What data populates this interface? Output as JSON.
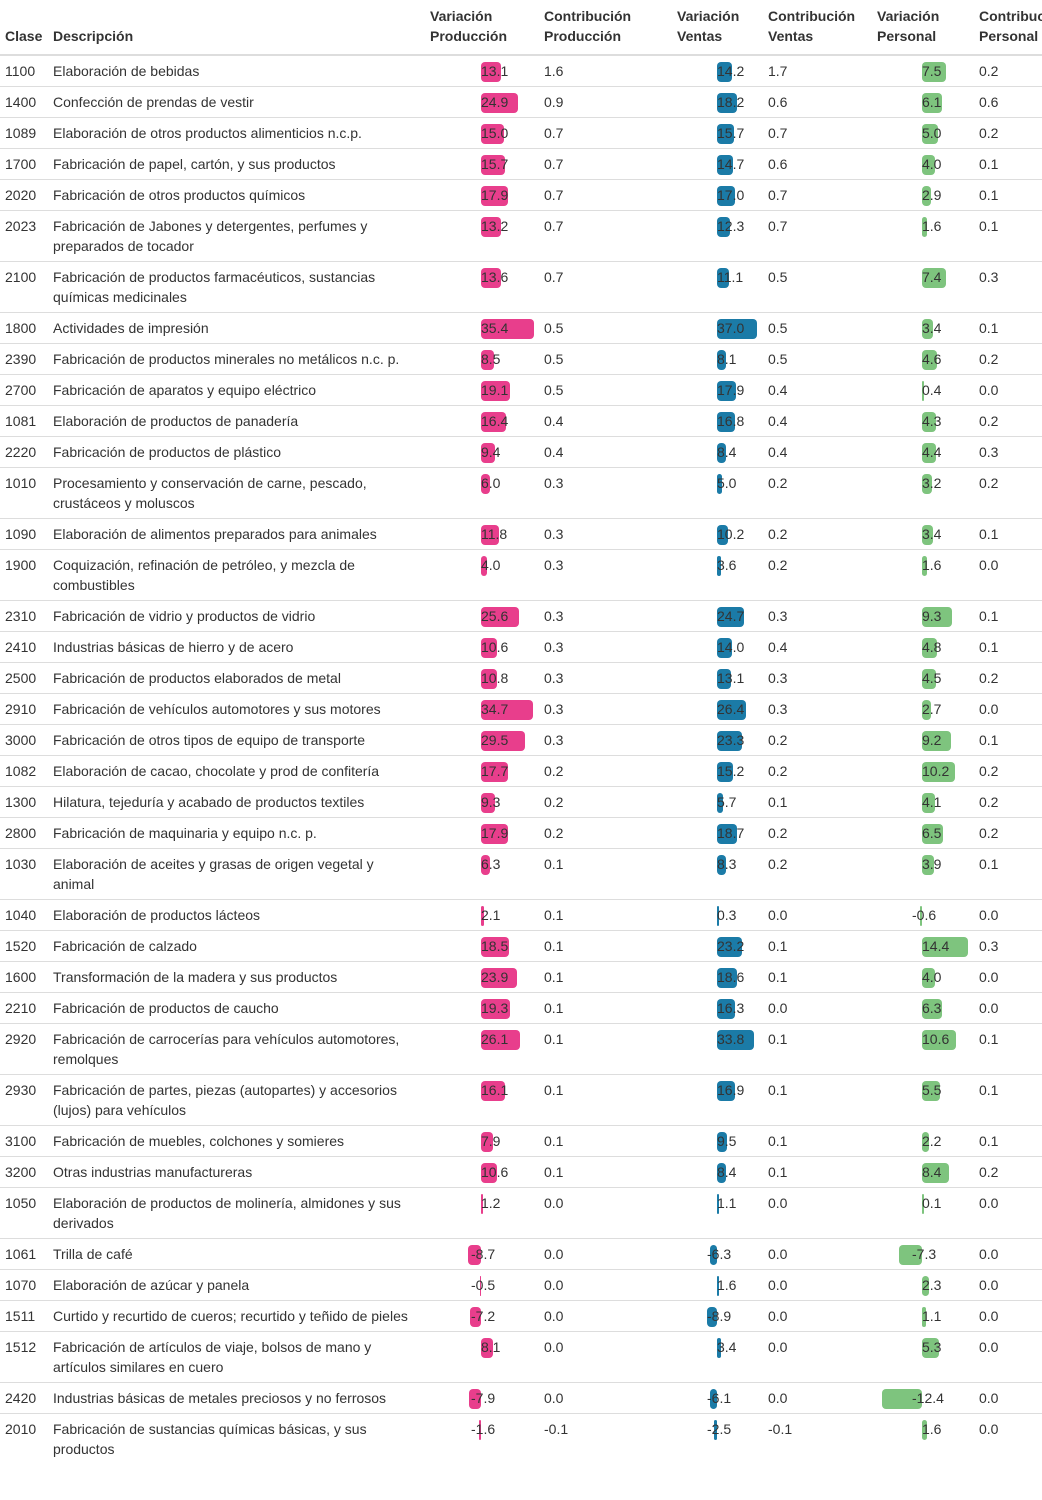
{
  "columns": {
    "clase": "Clase",
    "descripcion": "Descripción",
    "var_prod": [
      "Variación",
      "Producción"
    ],
    "con_prod": [
      "Contribución",
      "Producción"
    ],
    "var_vent": [
      "Variación",
      "Ventas"
    ],
    "con_vent": [
      "Contribución",
      "Ventas"
    ],
    "var_pers": [
      "Variación",
      "Personal"
    ],
    "con_pers": [
      "Contribución",
      "Personal"
    ]
  },
  "colors": {
    "produccion": "#e83e8c",
    "ventas": "#1b7ba7",
    "personal": "#7ec47e",
    "border": "#dddddd"
  },
  "rows": [
    {
      "clase": "1100",
      "desc": "Elaboración de bebidas",
      "vp": "13.1",
      "cp": "1.6",
      "vv": "14.2",
      "cv": "1.7",
      "vpe": "7.5",
      "cpe": "0.2"
    },
    {
      "clase": "1400",
      "desc": "Confección de prendas de vestir",
      "vp": "24.9",
      "cp": "0.9",
      "vv": "18.2",
      "cv": "0.6",
      "vpe": "6.1",
      "cpe": "0.6"
    },
    {
      "clase": "1089",
      "desc": "Elaboración de otros productos alimenticios n.c.p.",
      "vp": "15.0",
      "cp": "0.7",
      "vv": "15.7",
      "cv": "0.7",
      "vpe": "5.0",
      "cpe": "0.2"
    },
    {
      "clase": "1700",
      "desc": "Fabricación de papel, cartón, y sus productos",
      "vp": "15.7",
      "cp": "0.7",
      "vv": "14.7",
      "cv": "0.6",
      "vpe": "4.0",
      "cpe": "0.1"
    },
    {
      "clase": "2020",
      "desc": "Fabricación de otros productos químicos",
      "vp": "17.9",
      "cp": "0.7",
      "vv": "17.0",
      "cv": "0.7",
      "vpe": "2.9",
      "cpe": "0.1"
    },
    {
      "clase": "2023",
      "desc": "Fabricación de Jabones y detergentes, perfumes y preparados de tocador",
      "vp": "13.2",
      "cp": "0.7",
      "vv": "12.3",
      "cv": "0.7",
      "vpe": "1.6",
      "cpe": "0.1"
    },
    {
      "clase": "2100",
      "desc": "Fabricación de productos farmacéuticos, sustancias químicas medicinales",
      "vp": "13.6",
      "cp": "0.7",
      "vv": "11.1",
      "cv": "0.5",
      "vpe": "7.4",
      "cpe": "0.3"
    },
    {
      "clase": "1800",
      "desc": "Actividades de impresión",
      "vp": "35.4",
      "cp": "0.5",
      "vv": "37.0",
      "cv": "0.5",
      "vpe": "3.4",
      "cpe": "0.1"
    },
    {
      "clase": "2390",
      "desc": "Fabricación de productos minerales no metálicos n.c. p.",
      "vp": "8.5",
      "cp": "0.5",
      "vv": "8.1",
      "cv": "0.5",
      "vpe": "4.6",
      "cpe": "0.2"
    },
    {
      "clase": "2700",
      "desc": "Fabricación de aparatos y equipo eléctrico",
      "vp": "19.1",
      "cp": "0.5",
      "vv": "17.9",
      "cv": "0.4",
      "vpe": "0.4",
      "cpe": "0.0"
    },
    {
      "clase": "1081",
      "desc": "Elaboración de productos de panadería",
      "vp": "16.4",
      "cp": "0.4",
      "vv": "16.8",
      "cv": "0.4",
      "vpe": "4.3",
      "cpe": "0.2"
    },
    {
      "clase": "2220",
      "desc": "Fabricación de productos de plástico",
      "vp": "9.4",
      "cp": "0.4",
      "vv": "8.4",
      "cv": "0.4",
      "vpe": "4.4",
      "cpe": "0.3"
    },
    {
      "clase": "1010",
      "desc": "Procesamiento y conservación de carne, pescado, crustáceos y moluscos",
      "vp": "6.0",
      "cp": "0.3",
      "vv": "5.0",
      "cv": "0.2",
      "vpe": "3.2",
      "cpe": "0.2"
    },
    {
      "clase": "1090",
      "desc": "Elaboración de alimentos preparados para animales",
      "vp": "11.8",
      "cp": "0.3",
      "vv": "10.2",
      "cv": "0.2",
      "vpe": "3.4",
      "cpe": "0.1"
    },
    {
      "clase": "1900",
      "desc": "Coquización, refinación de petróleo, y mezcla de combustibles",
      "vp": "4.0",
      "cp": "0.3",
      "vv": "3.6",
      "cv": "0.2",
      "vpe": "1.6",
      "cpe": "0.0"
    },
    {
      "clase": "2310",
      "desc": "Fabricación de vidrio y productos de vidrio",
      "vp": "25.6",
      "cp": "0.3",
      "vv": "24.7",
      "cv": "0.3",
      "vpe": "9.3",
      "cpe": "0.1"
    },
    {
      "clase": "2410",
      "desc": "Industrias básicas de hierro y de acero",
      "vp": "10.6",
      "cp": "0.3",
      "vv": "14.0",
      "cv": "0.4",
      "vpe": "4.8",
      "cpe": "0.1"
    },
    {
      "clase": "2500",
      "desc": "Fabricación de productos elaborados de metal",
      "vp": "10.8",
      "cp": "0.3",
      "vv": "13.1",
      "cv": "0.3",
      "vpe": "4.5",
      "cpe": "0.2"
    },
    {
      "clase": "2910",
      "desc": "Fabricación de vehículos automotores y sus motores",
      "vp": "34.7",
      "cp": "0.3",
      "vv": "26.4",
      "cv": "0.3",
      "vpe": "2.7",
      "cpe": "0.0"
    },
    {
      "clase": "3000",
      "desc": "Fabricación de otros tipos de equipo de transporte",
      "vp": "29.5",
      "cp": "0.3",
      "vv": "23.3",
      "cv": "0.2",
      "vpe": "9.2",
      "cpe": "0.1"
    },
    {
      "clase": "1082",
      "desc": "Elaboración de cacao, chocolate y prod de confitería",
      "vp": "17.7",
      "cp": "0.2",
      "vv": "15.2",
      "cv": "0.2",
      "vpe": "10.2",
      "cpe": "0.2"
    },
    {
      "clase": "1300",
      "desc": "Hilatura, tejeduría y acabado de productos textiles",
      "vp": "9.3",
      "cp": "0.2",
      "vv": "5.7",
      "cv": "0.1",
      "vpe": "4.1",
      "cpe": "0.2"
    },
    {
      "clase": "2800",
      "desc": "Fabricación de maquinaria y equipo n.c. p.",
      "vp": "17.9",
      "cp": "0.2",
      "vv": "18.7",
      "cv": "0.2",
      "vpe": "6.5",
      "cpe": "0.2"
    },
    {
      "clase": "1030",
      "desc": "Elaboración de aceites y grasas de origen vegetal y animal",
      "vp": "6.3",
      "cp": "0.1",
      "vv": "8.3",
      "cv": "0.2",
      "vpe": "3.9",
      "cpe": "0.1"
    },
    {
      "clase": "1040",
      "desc": "Elaboración de productos lácteos",
      "vp": "2.1",
      "cp": "0.1",
      "vv": "0.3",
      "cv": "0.0",
      "vpe": "-0.6",
      "cpe": "0.0"
    },
    {
      "clase": "1520",
      "desc": "Fabricación de calzado",
      "vp": "18.5",
      "cp": "0.1",
      "vv": "23.2",
      "cv": "0.1",
      "vpe": "14.4",
      "cpe": "0.3"
    },
    {
      "clase": "1600",
      "desc": "Transformación de la madera y sus productos",
      "vp": "23.9",
      "cp": "0.1",
      "vv": "18.6",
      "cv": "0.1",
      "vpe": "4.0",
      "cpe": "0.0"
    },
    {
      "clase": "2210",
      "desc": "Fabricación de productos de caucho",
      "vp": "19.3",
      "cp": "0.1",
      "vv": "16.3",
      "cv": "0.0",
      "vpe": "6.3",
      "cpe": "0.0"
    },
    {
      "clase": "2920",
      "desc": "Fabricación de carrocerías para vehículos automotores, remolques",
      "vp": "26.1",
      "cp": "0.1",
      "vv": "33.8",
      "cv": "0.1",
      "vpe": "10.6",
      "cpe": "0.1"
    },
    {
      "clase": "2930",
      "desc": "Fabricación de partes, piezas (autopartes) y accesorios (lujos) para vehículos",
      "vp": "16.1",
      "cp": "0.1",
      "vv": "16.9",
      "cv": "0.1",
      "vpe": "5.5",
      "cpe": "0.1"
    },
    {
      "clase": "3100",
      "desc": "Fabricación de muebles, colchones y somieres",
      "vp": "7.9",
      "cp": "0.1",
      "vv": "9.5",
      "cv": "0.1",
      "vpe": "2.2",
      "cpe": "0.1"
    },
    {
      "clase": "3200",
      "desc": "Otras industrias manufactureras",
      "vp": "10.6",
      "cp": "0.1",
      "vv": "8.4",
      "cv": "0.1",
      "vpe": "8.4",
      "cpe": "0.2"
    },
    {
      "clase": "1050",
      "desc": "Elaboración de productos de molinería, almidones y sus derivados",
      "vp": "1.2",
      "cp": "0.0",
      "vv": "1.1",
      "cv": "0.0",
      "vpe": "0.1",
      "cpe": "0.0"
    },
    {
      "clase": "1061",
      "desc": "Trilla de café",
      "vp": "-8.7",
      "cp": "0.0",
      "vv": "-6.3",
      "cv": "0.0",
      "vpe": "-7.3",
      "cpe": "0.0"
    },
    {
      "clase": "1070",
      "desc": "Elaboración de azúcar y panela",
      "vp": "-0.5",
      "cp": "0.0",
      "vv": "1.6",
      "cv": "0.0",
      "vpe": "2.3",
      "cpe": "0.0"
    },
    {
      "clase": "1511",
      "desc": "Curtido y recurtido de cueros; recurtido y teñido de pieles",
      "vp": "-7.2",
      "cp": "0.0",
      "vv": "-8.9",
      "cv": "0.0",
      "vpe": "1.1",
      "cpe": "0.0"
    },
    {
      "clase": "1512",
      "desc": "Fabricación de artículos de viaje, bolsos de mano y artículos similares en cuero",
      "vp": "8.1",
      "cp": "0.0",
      "vv": "3.4",
      "cv": "0.0",
      "vpe": "5.3",
      "cpe": "0.0"
    },
    {
      "clase": "2420",
      "desc": "Industrias básicas de metales preciosos y no ferrosos",
      "vp": "-7.9",
      "cp": "0.0",
      "vv": "-6.1",
      "cv": "0.0",
      "vpe": "-12.4",
      "cpe": "0.0"
    },
    {
      "clase": "2010",
      "desc": "Fabricación de sustancias químicas básicas, y sus productos",
      "vp": "-1.6",
      "cp": "-0.1",
      "vv": "-2.5",
      "cv": "-0.1",
      "vpe": "1.6",
      "cpe": "0.0"
    }
  ]
}
